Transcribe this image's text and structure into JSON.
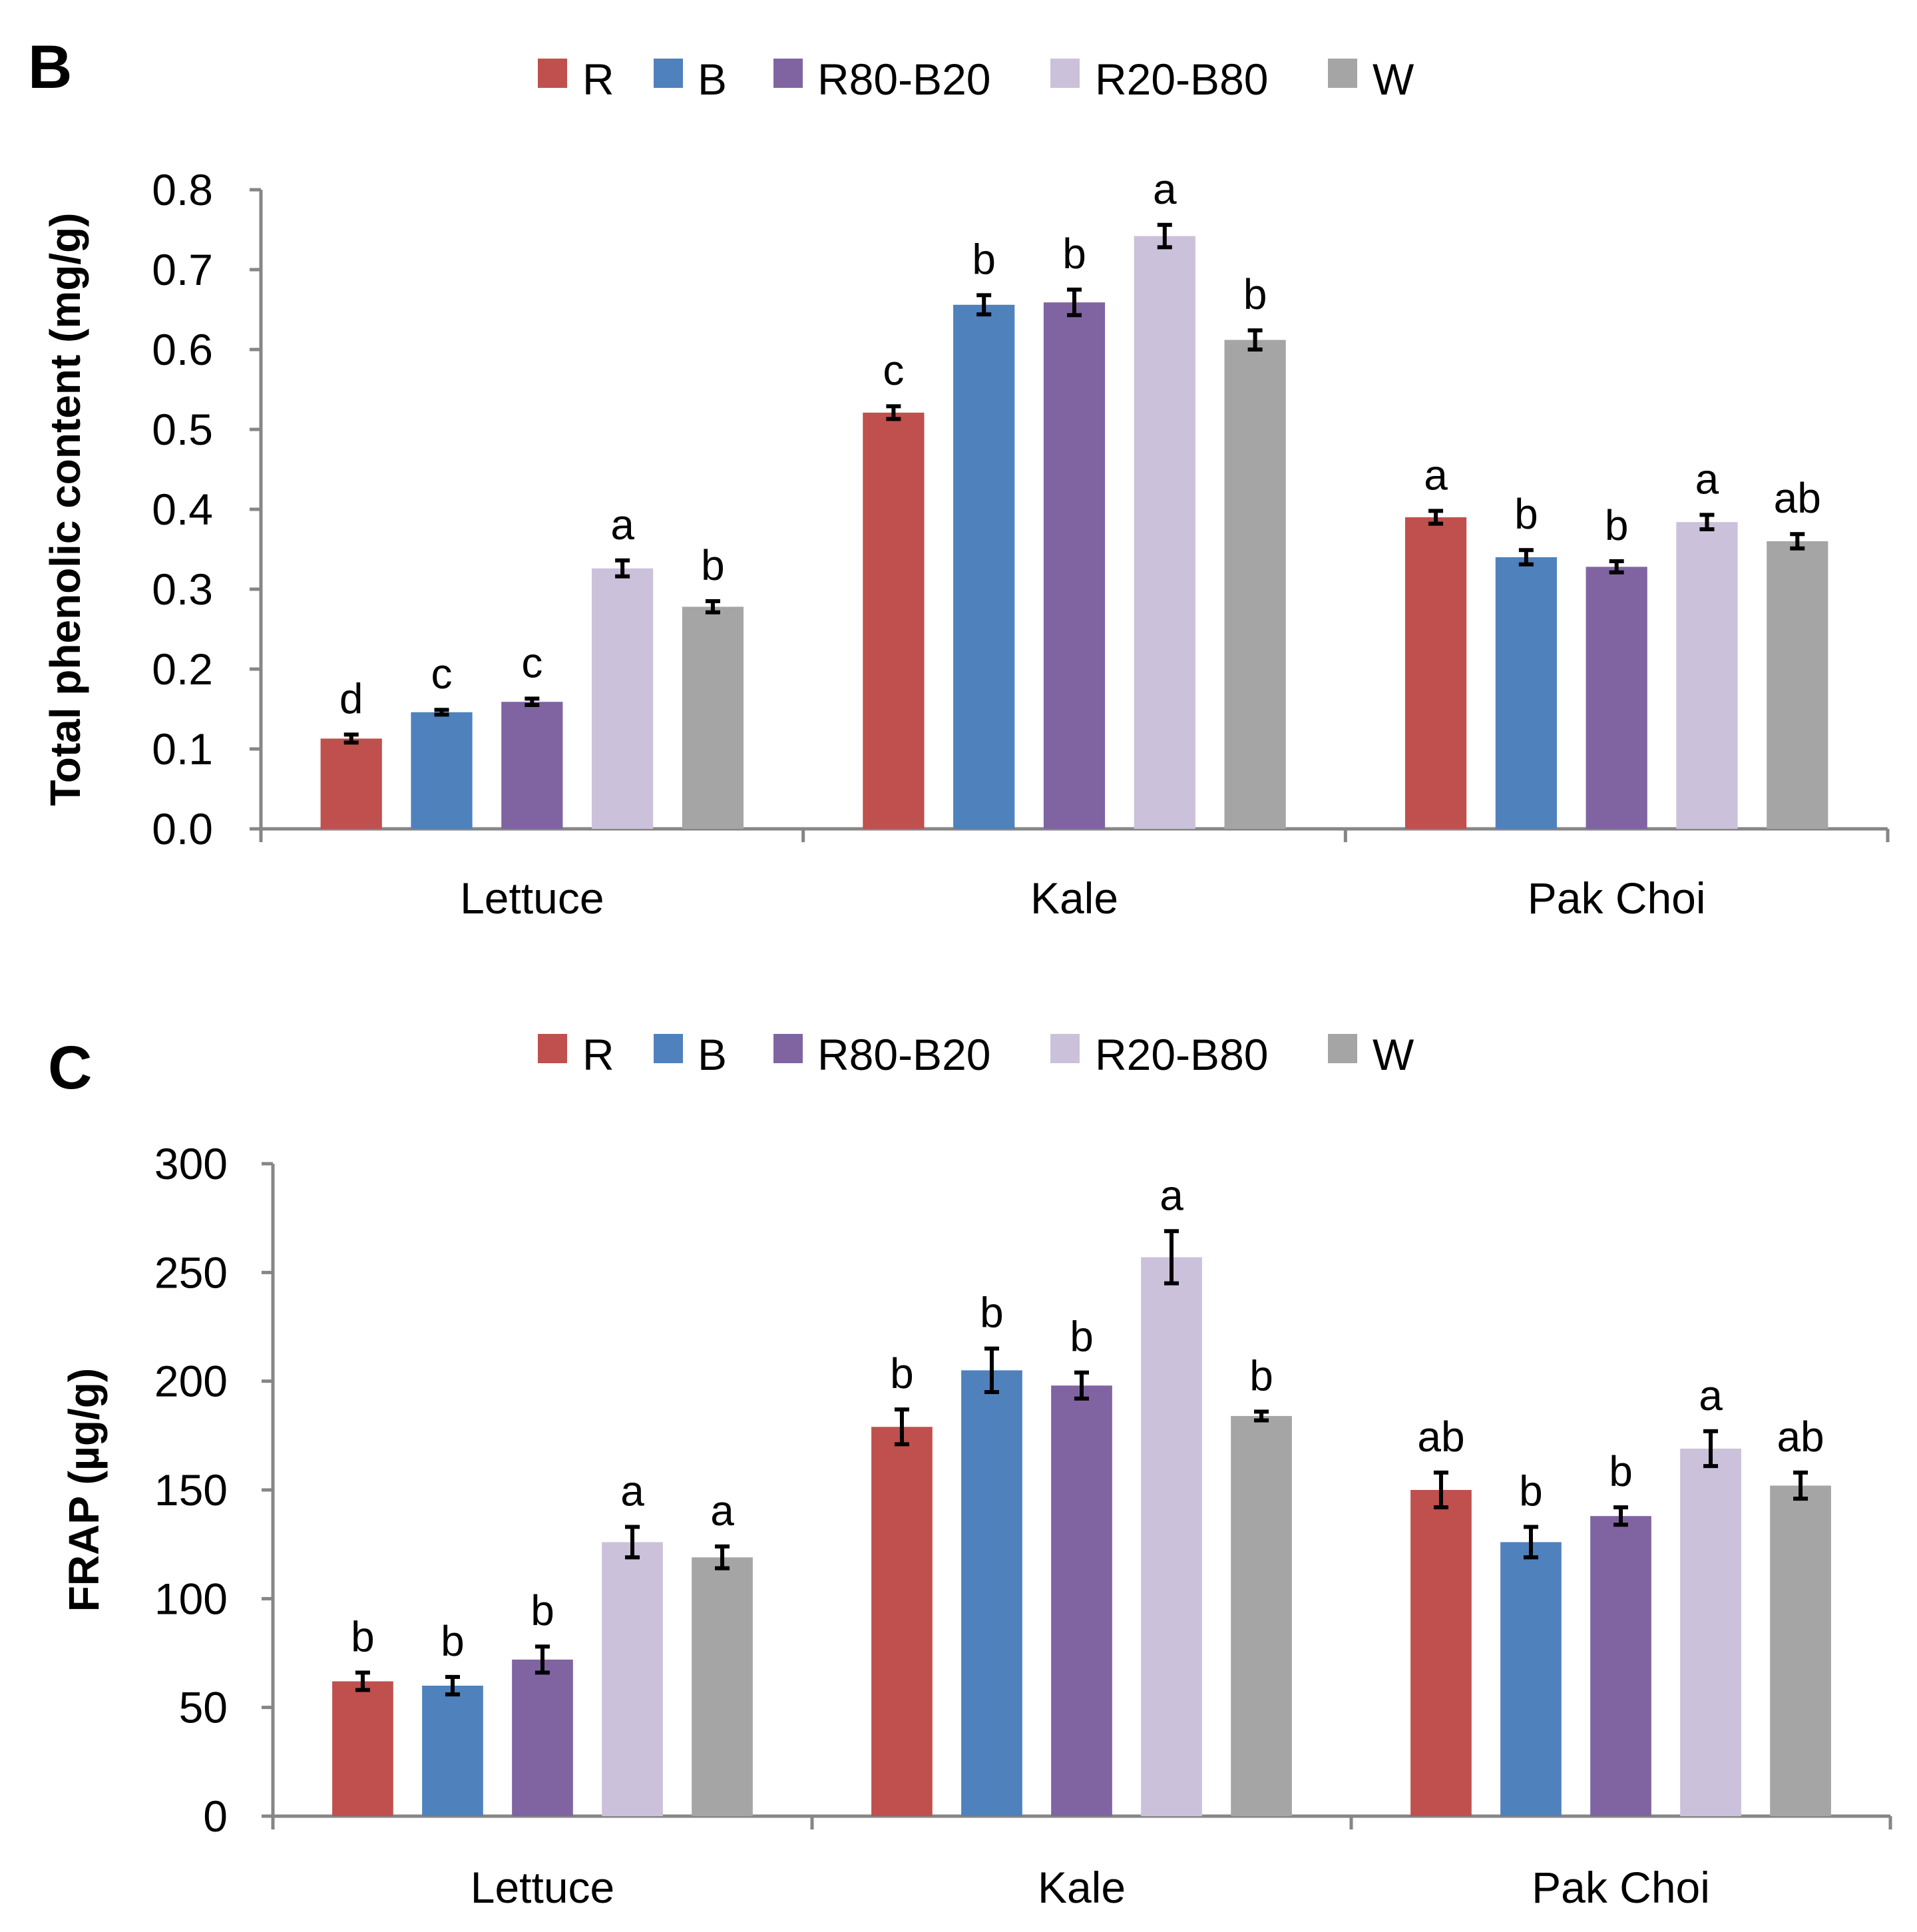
{
  "chart_data": [
    {
      "panel": "B",
      "type": "bar",
      "title": "",
      "xlabel": "",
      "ylabel": "Total phenolic content (mg/g)",
      "ylim": [
        0,
        0.8
      ],
      "ytick_step": 0.1,
      "yticks": [
        "0.0",
        "0.1",
        "0.2",
        "0.3",
        "0.4",
        "0.5",
        "0.6",
        "0.7",
        "0.8"
      ],
      "categories": [
        "Lettuce",
        "Kale",
        "Pak Choi"
      ],
      "legend_position": "top-center",
      "series": [
        {
          "name": "R",
          "color": "#c0504d",
          "values": [
            0.113,
            0.521,
            0.39
          ],
          "errors": [
            0.005,
            0.008,
            0.008
          ],
          "letters": [
            "d",
            "c",
            "a"
          ]
        },
        {
          "name": "B",
          "color": "#4f81bd",
          "values": [
            0.146,
            0.656,
            0.34
          ],
          "errors": [
            0.003,
            0.012,
            0.009
          ],
          "letters": [
            "c",
            "b",
            "b"
          ]
        },
        {
          "name": "R80-B20",
          "color": "#8064a2",
          "values": [
            0.159,
            0.659,
            0.328
          ],
          "errors": [
            0.004,
            0.016,
            0.007
          ],
          "letters": [
            "c",
            "b",
            "b"
          ]
        },
        {
          "name": "R20-B80",
          "color": "#ccc1da",
          "values": [
            0.326,
            0.742,
            0.384
          ],
          "errors": [
            0.01,
            0.014,
            0.009
          ],
          "letters": [
            "a",
            "a",
            "a"
          ]
        },
        {
          "name": "W",
          "color": "#a5a5a5",
          "values": [
            0.278,
            0.612,
            0.36
          ],
          "errors": [
            0.007,
            0.012,
            0.009
          ],
          "letters": [
            "b",
            "b",
            "ab"
          ]
        }
      ]
    },
    {
      "panel": "C",
      "type": "bar",
      "title": "",
      "xlabel": "",
      "ylabel": "FRAP (µg/g)",
      "ylim": [
        0,
        300
      ],
      "ytick_step": 50,
      "yticks": [
        "0",
        "50",
        "100",
        "150",
        "200",
        "250",
        "300"
      ],
      "categories": [
        "Lettuce",
        "Kale",
        "Pak Choi"
      ],
      "legend_position": "top-center",
      "series": [
        {
          "name": "R",
          "color": "#c0504d",
          "values": [
            62,
            179,
            150
          ],
          "errors": [
            4,
            8,
            8
          ],
          "letters": [
            "b",
            "b",
            "ab"
          ]
        },
        {
          "name": "B",
          "color": "#4f81bd",
          "values": [
            60,
            205,
            126
          ],
          "errors": [
            4,
            10,
            7
          ],
          "letters": [
            "b",
            "b",
            "b"
          ]
        },
        {
          "name": "R80-B20",
          "color": "#8064a2",
          "values": [
            72,
            198,
            138
          ],
          "errors": [
            6,
            6,
            4
          ],
          "letters": [
            "b",
            "b",
            "b"
          ]
        },
        {
          "name": "R20-B80",
          "color": "#ccc1da",
          "values": [
            126,
            257,
            169
          ],
          "errors": [
            7,
            12,
            8
          ],
          "letters": [
            "a",
            "a",
            "a"
          ]
        },
        {
          "name": "W",
          "color": "#a5a5a5",
          "values": [
            119,
            184,
            152
          ],
          "errors": [
            5,
            2,
            6
          ],
          "letters": [
            "a",
            "b",
            "ab"
          ]
        }
      ]
    }
  ]
}
